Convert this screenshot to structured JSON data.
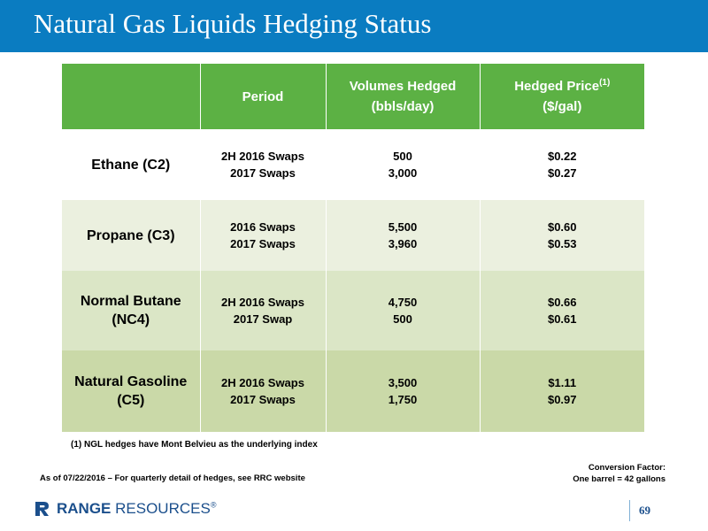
{
  "title": "Natural Gas Liquids Hedging Status",
  "table": {
    "headers": {
      "commodity": "",
      "period": "Period",
      "volumes_line1": "Volumes Hedged",
      "volumes_line2": "(bbls/day)",
      "price_line1": "Hedged Price",
      "price_sup": "(1)",
      "price_line2": "($/gal)"
    },
    "rows": [
      {
        "commodity_line1": "Ethane (C2)",
        "commodity_line2": "",
        "periods": [
          "2H 2016 Swaps",
          "2017 Swaps"
        ],
        "volumes": [
          "500",
          "3,000"
        ],
        "prices": [
          "$0.22",
          "$0.27"
        ]
      },
      {
        "commodity_line1": "Propane (C3)",
        "commodity_line2": "",
        "periods": [
          "2016 Swaps",
          "2017 Swaps"
        ],
        "volumes": [
          "5,500",
          "3,960"
        ],
        "prices": [
          "$0.60",
          "$0.53"
        ]
      },
      {
        "commodity_line1": "Normal Butane",
        "commodity_line2": "(NC4)",
        "periods": [
          "2H 2016 Swaps",
          "2017 Swap"
        ],
        "volumes": [
          "4,750",
          "500"
        ],
        "prices": [
          "$0.66",
          "$0.61"
        ]
      },
      {
        "commodity_line1": "Natural Gasoline",
        "commodity_line2": "(C5)",
        "periods": [
          "2H 2016 Swaps",
          "2017 Swaps"
        ],
        "volumes": [
          "3,500",
          "1,750"
        ],
        "prices": [
          "$1.11",
          "$0.97"
        ]
      }
    ]
  },
  "footnote": "(1) NGL hedges have Mont Belvieu as the underlying index",
  "as_of": "As of 07/22/2016 – For quarterly detail of hedges, see RRC website",
  "conversion": {
    "line1": "Conversion Factor:",
    "line2": "One barrel = 42 gallons"
  },
  "logo": {
    "text_bold": "RANGE",
    "text_rest": " RESOURCES",
    "mark": "®",
    "icon": "range-resources-logo-icon"
  },
  "page_number": "69",
  "colors": {
    "title_bar": "#0a7cc1",
    "header": "#5cb144",
    "row1": "#ffffff",
    "row2": "#ebf0df",
    "row3": "#dbe6c6",
    "row4": "#cad9a8",
    "logo": "#1b4f8c"
  }
}
